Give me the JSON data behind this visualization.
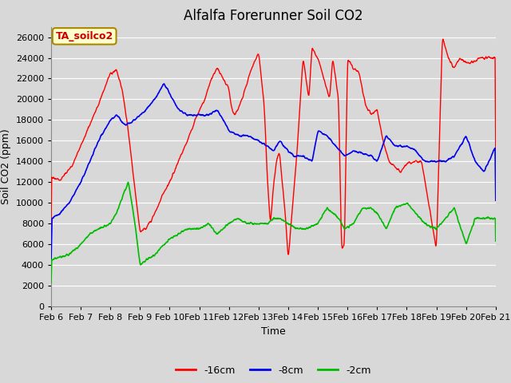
{
  "title": "Alfalfa Forerunner Soil CO2",
  "xlabel": "Time",
  "ylabel": "Soil CO2 (ppm)",
  "ylim": [
    0,
    27000
  ],
  "yticks": [
    0,
    2000,
    4000,
    6000,
    8000,
    10000,
    12000,
    14000,
    16000,
    18000,
    20000,
    22000,
    24000,
    26000
  ],
  "bg_color": "#d8d8d8",
  "grid_color": "#ffffff",
  "legend_label": "TA_soilco2",
  "legend_bg": "#ffffcc",
  "legend_border": "#aa8800",
  "line_colors": {
    "m16cm": "#ff0000",
    "m8cm": "#0000ee",
    "m2cm": "#00bb00"
  },
  "line_labels": [
    "-16cm",
    "-8cm",
    "-2cm"
  ],
  "x_tick_labels": [
    "Feb 6",
    "Feb 7",
    "Feb 8",
    "Feb 9",
    "Feb 10",
    "Feb 11",
    "Feb 12",
    "Feb 13",
    "Feb 14",
    "Feb 15",
    "Feb 16",
    "Feb 17",
    "Feb 18",
    "Feb 19",
    "Feb 20",
    "Feb 21"
  ],
  "title_fontsize": 12,
  "axis_label_fontsize": 9,
  "tick_fontsize": 8,
  "legend_fontsize": 9,
  "figsize": [
    6.4,
    4.8
  ],
  "dpi": 100
}
